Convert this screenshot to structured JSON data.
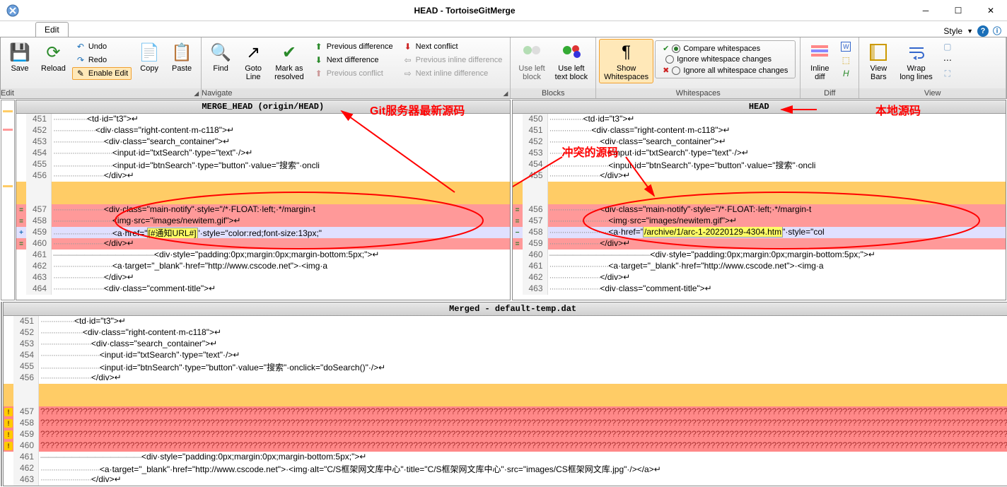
{
  "window": {
    "title": "HEAD - TortoiseGitMerge",
    "style_menu": "Style"
  },
  "tabs": {
    "edit": "Edit"
  },
  "ribbon": {
    "edit": {
      "label": "Edit",
      "save": "Save",
      "reload": "Reload",
      "undo": "Undo",
      "redo": "Redo",
      "enable_edit": "Enable Edit",
      "copy": "Copy",
      "paste": "Paste"
    },
    "nav": {
      "label": "Navigate",
      "find": "Find",
      "goto": "Goto\nLine",
      "mark_resolved": "Mark as\nresolved",
      "prev_diff": "Previous difference",
      "next_diff": "Next difference",
      "prev_conf": "Previous conflict",
      "next_conf": "Next conflict",
      "prev_inline": "Previous inline difference",
      "next_inline": "Next inline difference"
    },
    "blocks": {
      "label": "Blocks",
      "use_left_block": "Use left\nblock",
      "use_left_text": "Use left\ntext block"
    },
    "ws": {
      "label": "Whitespaces",
      "show": "Show\nWhitespaces",
      "compare": "Compare whitespaces",
      "ignore_changes": "Ignore whitespace changes",
      "ignore_all": "Ignore all whitespace changes"
    },
    "diff": {
      "label": "Diff",
      "inline": "Inline\ndiff"
    },
    "view": {
      "label": "View",
      "bars": "View\nBars",
      "wrap": "Wrap\nlong lines"
    }
  },
  "panes": {
    "left_title": "MERGE_HEAD (origin/HEAD)",
    "right_title": "HEAD",
    "merged_title": "Merged - default-temp.dat"
  },
  "annotations": {
    "server_code": "Git服务器最新源码",
    "local_code": "本地源码",
    "conflict_code": "冲突的源码"
  },
  "left_lines": [
    {
      "n": "451",
      "mark": "",
      "bg": "bg-normal",
      "pre": "················",
      "txt": "<td·id=\"t3\">↵"
    },
    {
      "n": "452",
      "mark": "",
      "bg": "bg-normal",
      "pre": "····················",
      "txt": "<div·class=\"right-content·m-c118\">↵"
    },
    {
      "n": "453",
      "mark": "",
      "bg": "bg-normal",
      "pre": "························",
      "txt": "<div·class=\"search_container\">↵"
    },
    {
      "n": "454",
      "mark": "",
      "bg": "bg-normal",
      "pre": "····························",
      "txt": "<input·id=\"txtSearch\"·type=\"text\"·/>↵"
    },
    {
      "n": "455",
      "mark": "",
      "bg": "bg-normal",
      "pre": "····························",
      "txt": "<input·id=\"btnSearch\"·type=\"button\"·value=\"搜索\"·oncli"
    },
    {
      "n": "456",
      "mark": "",
      "bg": "bg-normal",
      "pre": "························",
      "txt": "</div>↵"
    },
    {
      "n": "",
      "mark": "",
      "bg": "bg-orange",
      "pre": "",
      "txt": " "
    },
    {
      "n": "",
      "mark": "",
      "bg": "bg-orange",
      "pre": "",
      "txt": " "
    },
    {
      "n": "457",
      "mark": "=",
      "bg": "bg-red",
      "pre": "························",
      "txt": "<div·class=\"main-notify\"·style=\"/*·FLOAT:·left;·*/margin-t"
    },
    {
      "n": "458",
      "mark": "=",
      "bg": "bg-red",
      "pre": "····························",
      "txt": "<img·src=\"images/newitem.gif\">↵"
    },
    {
      "n": "459",
      "mark": "+",
      "bg": "bg-lav",
      "pre": "····························",
      "txt": "<a·href=\"",
      "hl": "[#通知URL#]",
      "after": "\"·style=\"color:red;font-size:13px;\""
    },
    {
      "n": "460",
      "mark": "=",
      "bg": "bg-red",
      "pre": "························",
      "txt": "</div>↵"
    },
    {
      "n": "461",
      "mark": "",
      "bg": "bg-normal",
      "pre": "—————————————",
      "txt": "<div·style=\"padding:0px;margin:0px;margin-bottom:5px;\">↵"
    },
    {
      "n": "462",
      "mark": "",
      "bg": "bg-normal",
      "pre": "····························",
      "txt": "<a·target=\"_blank\"·href=\"http://www.cscode.net\">·<img·a"
    },
    {
      "n": "463",
      "mark": "",
      "bg": "bg-normal",
      "pre": "························",
      "txt": "</div>↵"
    },
    {
      "n": "464",
      "mark": "",
      "bg": "bg-normal",
      "pre": "························",
      "txt": "<div·class=\"comment-title\">↵"
    }
  ],
  "right_lines": [
    {
      "n": "450",
      "mark": "",
      "bg": "bg-normal",
      "pre": "················",
      "txt": "<td·id=\"t3\">↵"
    },
    {
      "n": "451",
      "mark": "",
      "bg": "bg-normal",
      "pre": "····················",
      "txt": "<div·class=\"right-content·m-c118\">↵"
    },
    {
      "n": "452",
      "mark": "",
      "bg": "bg-normal",
      "pre": "························",
      "txt": "<div·class=\"search_container\">↵"
    },
    {
      "n": "453",
      "mark": "",
      "bg": "bg-normal",
      "pre": "····························",
      "txt": "<input·id=\"txtSearch\"·type=\"text\"·/>↵"
    },
    {
      "n": "454",
      "mark": "",
      "bg": "bg-normal",
      "pre": "····························",
      "txt": "<input·id=\"btnSearch\"·type=\"button\"·value=\"搜索\"·oncli"
    },
    {
      "n": "455",
      "mark": "",
      "bg": "bg-normal",
      "pre": "························",
      "txt": "</div>↵"
    },
    {
      "n": "",
      "mark": "",
      "bg": "bg-orange",
      "pre": "",
      "txt": " "
    },
    {
      "n": "",
      "mark": "",
      "bg": "bg-orange",
      "pre": "",
      "txt": " "
    },
    {
      "n": "456",
      "mark": "=",
      "bg": "bg-red",
      "pre": "························",
      "txt": "<div·class=\"main-notify\"·style=\"/*·FLOAT:·left;·*/margin-t"
    },
    {
      "n": "457",
      "mark": "=",
      "bg": "bg-red",
      "pre": "····························",
      "txt": "<img·src=\"images/newitem.gif\">↵"
    },
    {
      "n": "458",
      "mark": "-",
      "bg": "bg-lav",
      "pre": "····························",
      "txt": "<a·href=\"",
      "hl": "/archive/1/arc-1-20220129-4304.htm",
      "after": "\"·style=\"col"
    },
    {
      "n": "459",
      "mark": "=",
      "bg": "bg-red",
      "pre": "························",
      "txt": "</div>↵"
    },
    {
      "n": "460",
      "mark": "",
      "bg": "bg-normal",
      "pre": "—————————————",
      "txt": "<div·style=\"padding:0px;margin:0px;margin-bottom:5px;\">↵"
    },
    {
      "n": "461",
      "mark": "",
      "bg": "bg-normal",
      "pre": "····························",
      "txt": "<a·target=\"_blank\"·href=\"http://www.cscode.net\">·<img·a"
    },
    {
      "n": "462",
      "mark": "",
      "bg": "bg-normal",
      "pre": "························",
      "txt": "</div>↵"
    },
    {
      "n": "463",
      "mark": "",
      "bg": "bg-normal",
      "pre": "························",
      "txt": "<div·class=\"comment-title\">↵"
    }
  ],
  "merged_lines": [
    {
      "n": "451",
      "mark": "",
      "bg": "bg-normal",
      "pre": "················",
      "txt": "<td·id=\"t3\">↵"
    },
    {
      "n": "452",
      "mark": "",
      "bg": "bg-normal",
      "pre": "····················",
      "txt": "<div·class=\"right-content·m-c118\">↵"
    },
    {
      "n": "453",
      "mark": "",
      "bg": "bg-normal",
      "pre": "························",
      "txt": "<div·class=\"search_container\">↵"
    },
    {
      "n": "454",
      "mark": "",
      "bg": "bg-normal",
      "pre": "····························",
      "txt": "<input·id=\"txtSearch\"·type=\"text\"·/>↵"
    },
    {
      "n": "455",
      "mark": "",
      "bg": "bg-normal",
      "pre": "····························",
      "txt": "<input·id=\"btnSearch\"·type=\"button\"·value=\"搜索\"·onclick=\"doSearch()\"·/>↵"
    },
    {
      "n": "456",
      "mark": "",
      "bg": "bg-normal",
      "pre": "························",
      "txt": "</div>↵"
    },
    {
      "n": "",
      "mark": "",
      "bg": "bg-orange",
      "pre": "",
      "txt": " "
    },
    {
      "n": "",
      "mark": "",
      "bg": "bg-orange",
      "pre": "",
      "txt": " "
    },
    {
      "n": "457",
      "mark": "!",
      "bg": "bg-conflict-q",
      "pre": "",
      "txt": "????????????????????????????????????????????????????????????????????????????????????????????????????????????????????????????????????????????????????????????????????????????????????????????????????????????????"
    },
    {
      "n": "458",
      "mark": "!",
      "bg": "bg-conflict-q",
      "pre": "",
      "txt": "????????????????????????????????????????????????????????????????????????????????????????????????????????????????????????????????????????????????????????????????????????????????????????????????????????????????"
    },
    {
      "n": "459",
      "mark": "!",
      "bg": "bg-conflict-q",
      "pre": "",
      "txt": "????????????????????????????????????????????????????????????????????????????????????????????????????????????????????????????????????????????????????????????????????????????????????????????????????????????????"
    },
    {
      "n": "460",
      "mark": "!",
      "bg": "bg-conflict-q",
      "pre": "",
      "txt": "????????????????????????????????????????????????????????????????????????????????????????????????????????????????????????????????????????????????????????????????????????????????????????????????????????????????"
    },
    {
      "n": "461",
      "mark": "",
      "bg": "bg-normal",
      "pre": "—————————————",
      "txt": "<div·style=\"padding:0px;margin:0px;margin-bottom:5px;\">↵"
    },
    {
      "n": "462",
      "mark": "",
      "bg": "bg-normal",
      "pre": "····························",
      "txt": "<a·target=\"_blank\"·href=\"http://www.cscode.net\">·<img·alt=\"C/S框架网文库中心\"·title=\"C/S框架网文库中心\"·src=\"images/CS框架网文库.jpg\"·/></a>↵"
    },
    {
      "n": "463",
      "mark": "",
      "bg": "bg-normal",
      "pre": "························",
      "txt": "</div>↵"
    }
  ],
  "colors": {
    "orange": "#ffcc66",
    "red": "#ff9999",
    "lav": "#e0e0ff",
    "hl": "#ffff66",
    "anno_red": "#ff0000",
    "mark_green": "#2a7a2a"
  }
}
